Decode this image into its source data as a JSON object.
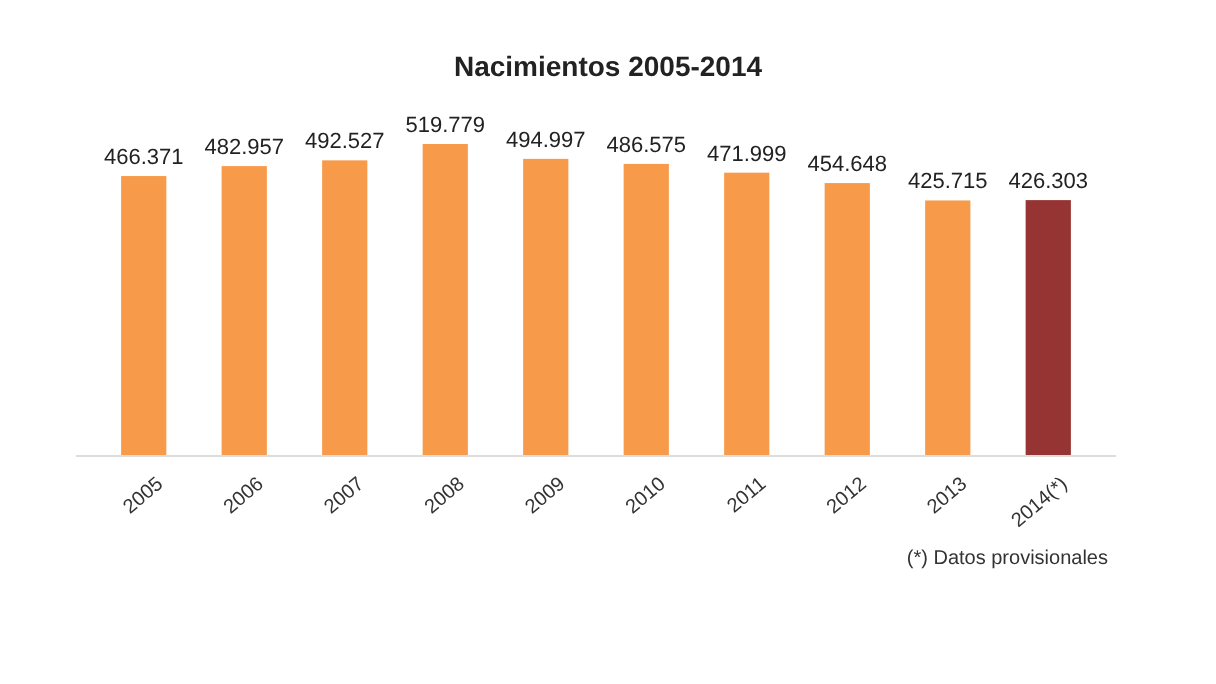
{
  "chart_data": {
    "type": "bar",
    "title": "Nacimientos 2005-2014",
    "categories": [
      "2005",
      "2006",
      "2007",
      "2008",
      "2009",
      "2010",
      "2011",
      "2012",
      "2013",
      "2014(*)"
    ],
    "values": [
      466371,
      482957,
      492527,
      519779,
      494997,
      486575,
      471999,
      454648,
      425715,
      426303
    ],
    "value_labels": [
      "466.371",
      "482.957",
      "492.527",
      "519.779",
      "494.997",
      "486.575",
      "471.999",
      "454.648",
      "425.715",
      "426.303"
    ],
    "colors": [
      "#f79a4a",
      "#f79a4a",
      "#f79a4a",
      "#f79a4a",
      "#f79a4a",
      "#f79a4a",
      "#f79a4a",
      "#f79a4a",
      "#f79a4a",
      "#963333"
    ],
    "annotations": [
      "(*) Datos provisionales"
    ]
  }
}
